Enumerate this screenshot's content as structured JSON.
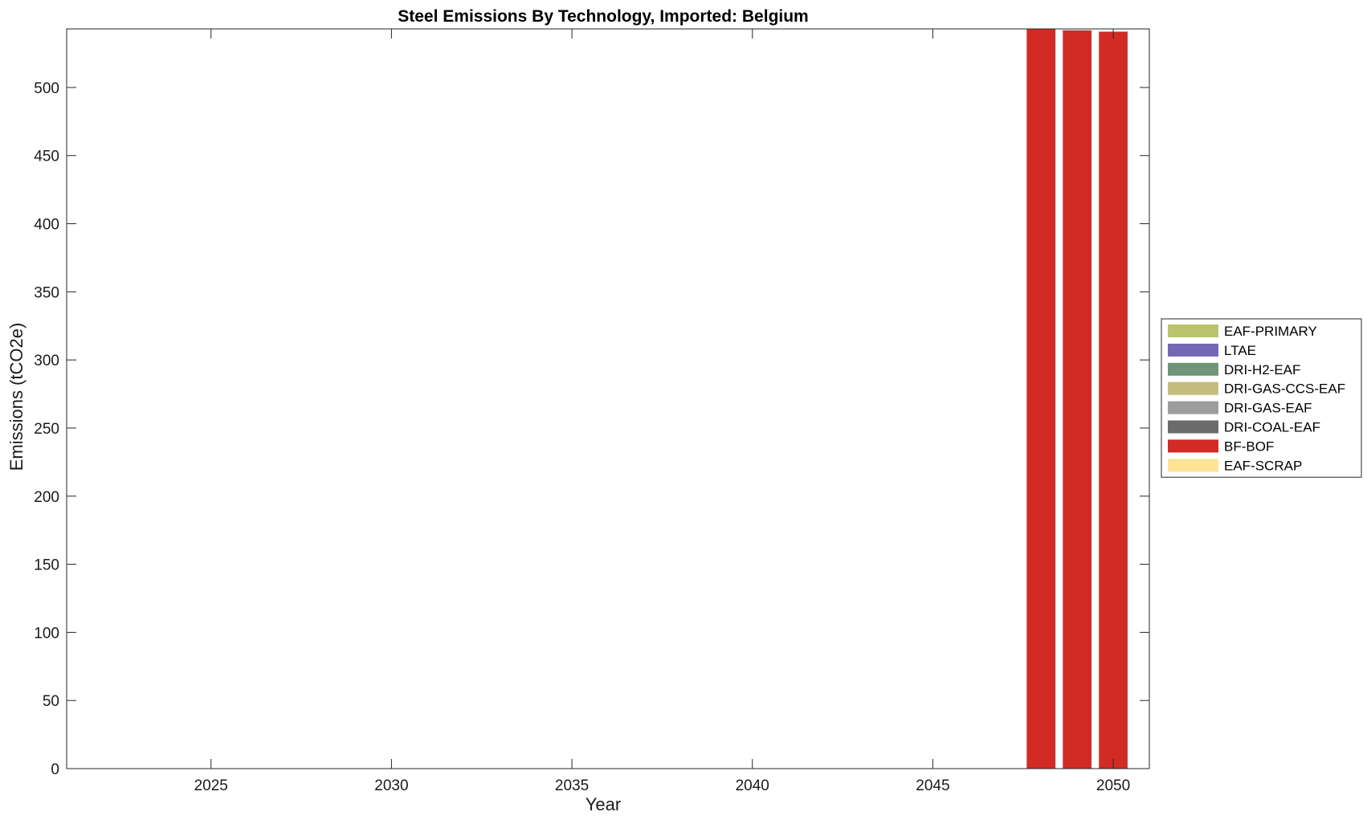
{
  "chart_data": {
    "type": "bar",
    "stacked": true,
    "title": "Steel Emissions By Technology, Imported: Belgium",
    "xlabel": "Year",
    "ylabel": "Emissions (tCO2e)",
    "xlim": [
      2021,
      2051
    ],
    "ylim": [
      0,
      543
    ],
    "x_ticks": [
      2025,
      2030,
      2035,
      2040,
      2045,
      2050
    ],
    "y_ticks": [
      0,
      50,
      100,
      150,
      200,
      250,
      300,
      350,
      400,
      450,
      500
    ],
    "grid": false,
    "legend_position": "right",
    "x": [
      2048,
      2049,
      2050
    ],
    "series": [
      {
        "name": "EAF-PRIMARY",
        "color": "#b9c46c",
        "values": [
          0,
          0,
          0
        ]
      },
      {
        "name": "LTAE",
        "color": "#7367b6",
        "values": [
          0,
          0,
          0
        ]
      },
      {
        "name": "DRI-H2-EAF",
        "color": "#6f957a",
        "values": [
          0,
          0,
          0
        ]
      },
      {
        "name": "DRI-GAS-CCS-EAF",
        "color": "#c5bd7e",
        "values": [
          0,
          0,
          0
        ]
      },
      {
        "name": "DRI-GAS-EAF",
        "color": "#9d9d9d",
        "values": [
          0,
          0,
          0
        ]
      },
      {
        "name": "DRI-COAL-EAF",
        "color": "#6b6b6b",
        "values": [
          0,
          0,
          0
        ]
      },
      {
        "name": "BF-BOF",
        "color": "#d22a24",
        "values": [
          543,
          542,
          541
        ]
      },
      {
        "name": "EAF-SCRAP",
        "color": "#fde393",
        "values": [
          0,
          0,
          0
        ]
      }
    ]
  }
}
